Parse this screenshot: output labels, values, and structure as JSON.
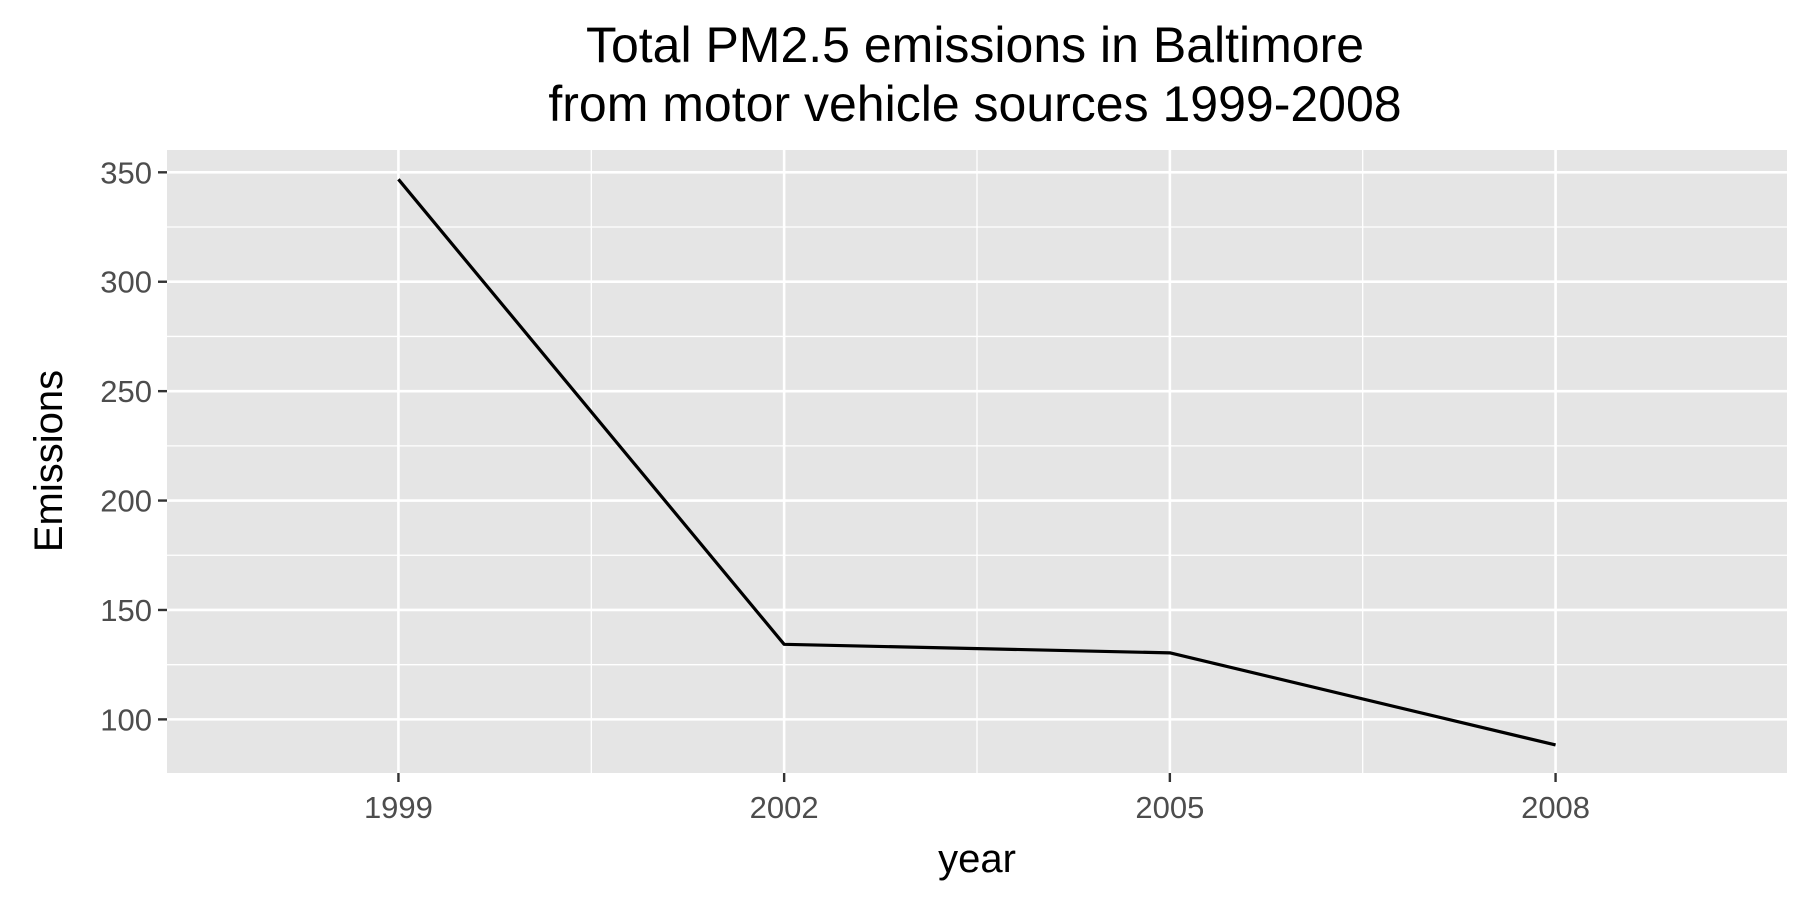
{
  "chart_data": {
    "type": "line",
    "title": "Total PM2.5 emissions in Baltimore",
    "subtitle": "from motor vehicle sources 1999-2008",
    "xlabel": "year",
    "ylabel": "Emissions",
    "x": [
      1999,
      2002,
      2005,
      2008
    ],
    "y": [
      346.8,
      134.3,
      130.4,
      88.3
    ],
    "x_ticks": [
      1999,
      2002,
      2005,
      2008
    ],
    "y_ticks": [
      100,
      150,
      200,
      250,
      300,
      350
    ],
    "xlim": [
      1997.2,
      2009.8
    ],
    "ylim": [
      75.5,
      360.2
    ],
    "grid": true,
    "legend": "none",
    "colors": {
      "panel_background": "#e5e5e5",
      "grid_major": "#ffffff",
      "grid_minor": "#f2f2f2",
      "line": "#000000",
      "tick_label": "#4d4d4d",
      "text": "#000000"
    }
  }
}
